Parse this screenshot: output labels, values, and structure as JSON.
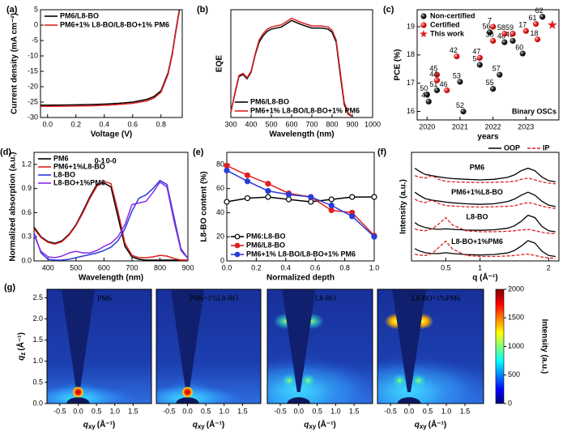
{
  "chart_data": [
    {
      "type": "line",
      "panel_label": "(a)",
      "x_label": "Voltage (V)",
      "y_label": "Current density (mA cm⁻²)",
      "xlim": [
        -0.05,
        0.95
      ],
      "xticks": [
        {
          "value": 0,
          "label": "0.0"
        },
        0.2,
        0.4,
        0.6,
        0.8
      ],
      "ylim": [
        -30,
        5
      ],
      "yticks": [
        -30,
        -25,
        -20,
        -15,
        -10,
        -5,
        0,
        5
      ],
      "legend": "upper left",
      "x": [
        -0.05,
        0,
        0.1,
        0.2,
        0.3,
        0.4,
        0.5,
        0.6,
        0.7,
        0.75,
        0.8,
        0.85,
        0.88,
        0.9,
        0.92,
        0.93
      ],
      "series": [
        {
          "name": "PM6/L8-BO",
          "color": "#000000",
          "values": [
            -26.0,
            -26.0,
            -25.95,
            -25.9,
            -25.8,
            -25.65,
            -25.4,
            -25.0,
            -24.1,
            -23.2,
            -21.3,
            -15.5,
            -9.0,
            -3.0,
            2.5,
            5.0
          ]
        },
        {
          "name": "PM6+1% L8-BO/L8-BO+1% PM6",
          "color": "#e02020",
          "values": [
            -26.4,
            -26.4,
            -26.35,
            -26.3,
            -26.2,
            -26.05,
            -25.8,
            -25.4,
            -24.6,
            -23.7,
            -21.8,
            -16.0,
            -9.5,
            -3.5,
            2.0,
            4.5
          ]
        }
      ]
    },
    {
      "type": "line",
      "panel_label": "(b)",
      "x_label": "Wavelength (nm)",
      "y_label": "EQE",
      "xlim": [
        300,
        1000
      ],
      "xticks": [
        300,
        400,
        500,
        600,
        700,
        800,
        900,
        1000
      ],
      "ylim": [
        0,
        1
      ],
      "legend": "lower left",
      "x": [
        300,
        320,
        340,
        360,
        380,
        400,
        420,
        440,
        460,
        480,
        500,
        550,
        600,
        650,
        700,
        750,
        780,
        800,
        820,
        840,
        860,
        880,
        900
      ],
      "series": [
        {
          "name": "PM6/L8-BO",
          "color": "#000000",
          "values": [
            0.05,
            0.22,
            0.38,
            0.4,
            0.36,
            0.42,
            0.58,
            0.7,
            0.76,
            0.8,
            0.82,
            0.84,
            0.9,
            0.86,
            0.83,
            0.83,
            0.82,
            0.79,
            0.7,
            0.4,
            0.12,
            0.03,
            0.01
          ]
        },
        {
          "name": "PM6+1% L8-BO/L8-BO+1% PM6",
          "color": "#e02020",
          "values": [
            0.05,
            0.23,
            0.39,
            0.41,
            0.37,
            0.43,
            0.59,
            0.72,
            0.78,
            0.82,
            0.84,
            0.86,
            0.92,
            0.88,
            0.85,
            0.85,
            0.84,
            0.81,
            0.72,
            0.43,
            0.14,
            0.04,
            0.01
          ]
        }
      ]
    },
    {
      "type": "scatter",
      "panel_label": "(c)",
      "x_label": "years",
      "y_label": "PCE (%)",
      "annotation": "Binary OSCs",
      "xlim": [
        2019.7,
        2024.0
      ],
      "xticks": [
        2020,
        2021,
        2022,
        2023
      ],
      "ylim": [
        15.7,
        19.6
      ],
      "yticks": [
        16,
        17,
        18,
        19
      ],
      "legend": "upper left",
      "series": [
        {
          "name": "Non-certified",
          "color": "#111111",
          "marker": "circle",
          "x": [
            2020.0,
            2020.05,
            2020.3,
            2021.0,
            2021.1,
            2021.6,
            2021.9,
            2022.0,
            2022.2,
            2022.35,
            2022.6,
            2022.9,
            2023.5
          ],
          "values": [
            16.6,
            16.35,
            16.75,
            17.05,
            16.0,
            17.65,
            18.8,
            16.8,
            17.3,
            18.45,
            18.5,
            18.05,
            19.35
          ],
          "point_labels": [
            "50",
            "43",
            "51",
            "53",
            "52",
            "54",
            "56",
            "55",
            "57",
            "48",
            "49",
            "60",
            "62"
          ]
        },
        {
          "name": "Certified",
          "color": "#e02020",
          "marker": "circle",
          "x": [
            2020.3,
            2020.3,
            2020.6,
            2020.9,
            2021.6,
            2022.0,
            2022.0,
            2022.35,
            2022.6,
            2023.0,
            2023.35,
            2023.3
          ],
          "values": [
            17.3,
            17.1,
            16.75,
            17.95,
            17.9,
            19.0,
            18.5,
            18.75,
            18.75,
            18.85,
            18.55,
            19.1
          ],
          "point_labels": [
            "45",
            "44",
            "46",
            "42",
            "47",
            "7",
            "30",
            "58",
            "59",
            "17",
            "18",
            "61"
          ]
        },
        {
          "name": "This work",
          "color": "#e02020",
          "marker": "star",
          "x": [
            2023.8
          ],
          "values": [
            19.06
          ]
        }
      ]
    },
    {
      "type": "line",
      "panel_label": "(d)",
      "x_label": "Wavelength (nm)",
      "y_label": "Normalized absorption (a.u.)",
      "annotations": [
        "0-1",
        "0-0"
      ],
      "xlim": [
        350,
        900
      ],
      "xticks": [
        400,
        500,
        600,
        700,
        800,
        900
      ],
      "ylim": [
        0,
        1.35
      ],
      "yticks": [
        {
          "value": 0,
          "label": "0.0"
        },
        0.3,
        0.6,
        0.9,
        1.2
      ],
      "legend": "upper left",
      "x": [
        350,
        375,
        400,
        425,
        450,
        475,
        500,
        525,
        550,
        575,
        600,
        625,
        650,
        675,
        700,
        725,
        750,
        775,
        800,
        825,
        850,
        875,
        900
      ],
      "series": [
        {
          "name": "PM6",
          "color": "#000000",
          "values": [
            0.42,
            0.3,
            0.24,
            0.22,
            0.25,
            0.33,
            0.45,
            0.62,
            0.8,
            0.95,
            0.97,
            0.92,
            0.55,
            0.18,
            0.05,
            0.02,
            0.01,
            0.01,
            0.01,
            0.01,
            0.01,
            0.01,
            0.01
          ]
        },
        {
          "name": "PM6+1%L8-BO",
          "color": "#e02020",
          "values": [
            0.4,
            0.29,
            0.23,
            0.21,
            0.24,
            0.32,
            0.44,
            0.6,
            0.78,
            0.93,
            0.99,
            0.96,
            0.62,
            0.22,
            0.07,
            0.04,
            0.04,
            0.05,
            0.07,
            0.06,
            0.03,
            0.01,
            0.01
          ]
        },
        {
          "name": "L8-BO",
          "color": "#2a3bd8",
          "values": [
            0.35,
            0.1,
            0.02,
            0.01,
            0.01,
            0.02,
            0.04,
            0.06,
            0.08,
            0.1,
            0.13,
            0.17,
            0.25,
            0.4,
            0.62,
            0.78,
            0.82,
            0.9,
            1.0,
            0.95,
            0.55,
            0.15,
            0.03
          ]
        },
        {
          "name": "L8-BO+1%PM6",
          "color": "#8a2be2",
          "values": [
            0.32,
            0.12,
            0.05,
            0.04,
            0.06,
            0.1,
            0.12,
            0.1,
            0.1,
            0.13,
            0.18,
            0.22,
            0.3,
            0.45,
            0.7,
            0.72,
            0.74,
            0.85,
            0.98,
            0.92,
            0.5,
            0.13,
            0.03
          ]
        }
      ]
    },
    {
      "type": "line",
      "panel_label": "(e)",
      "x_label": "Normalized depth",
      "y_label": "L8-BO content (%)",
      "xlim": [
        0,
        1
      ],
      "xticks": [
        {
          "value": 0,
          "label": "0.0"
        },
        0.2,
        0.4,
        0.6,
        0.8,
        {
          "value": 1,
          "label": "1.0"
        }
      ],
      "ylim": [
        0,
        90
      ],
      "yticks": [
        0,
        20,
        40,
        60,
        80
      ],
      "legend": "lower left",
      "markers": true,
      "x": [
        0,
        0.14,
        0.28,
        0.42,
        0.57,
        0.71,
        0.85,
        1.0
      ],
      "series": [
        {
          "name": "PM6:L8-BO",
          "color": "#000000",
          "values": [
            49,
            52,
            53,
            51,
            49,
            51,
            53,
            53
          ]
        },
        {
          "name": "PM6/L8-BO",
          "color": "#e02020",
          "values": [
            79,
            71,
            64,
            56,
            53,
            42,
            40,
            21
          ]
        },
        {
          "name": "PM6+1% L8-BO/L8-BO+1% PM6",
          "color": "#2a3bd8",
          "values": [
            75,
            66,
            58,
            55,
            53,
            46,
            37,
            20
          ]
        }
      ]
    },
    {
      "type": "stacked_line",
      "panel_label": "(f)",
      "x_label": "q (Å⁻¹)",
      "y_label": "Intensity (a.u.)",
      "xlim": [
        0,
        2.15
      ],
      "xticks": [
        0.5,
        1,
        2
      ],
      "ylim": [
        0,
        1
      ],
      "x": [
        0.05,
        0.1,
        0.2,
        0.3,
        0.4,
        0.5,
        0.6,
        0.8,
        1.0,
        1.2,
        1.4,
        1.5,
        1.6,
        1.7,
        1.8,
        1.9,
        2.0,
        2.1
      ],
      "series": [
        {
          "name": "OOP",
          "color": "#000000",
          "dash": false
        },
        {
          "name": "IP",
          "color": "#e02020",
          "dash": true
        }
      ],
      "samples": [
        {
          "name": "PM6",
          "curves": [
            [
              0.75,
              0.65,
              0.5,
              0.45,
              0.4,
              0.36,
              0.33,
              0.3,
              0.28,
              0.3,
              0.38,
              0.48,
              0.65,
              0.75,
              0.65,
              0.4,
              0.25,
              0.2
            ],
            [
              0.45,
              0.4,
              0.35,
              0.45,
              0.3,
              0.22,
              0.2,
              0.18,
              0.17,
              0.18,
              0.2,
              0.22,
              0.3,
              0.35,
              0.28,
              0.2,
              0.15,
              0.12
            ]
          ]
        },
        {
          "name": "PM6+1%L8-BO",
          "curves": [
            [
              0.78,
              0.68,
              0.52,
              0.46,
              0.42,
              0.38,
              0.35,
              0.31,
              0.29,
              0.31,
              0.4,
              0.5,
              0.66,
              0.78,
              0.66,
              0.42,
              0.26,
              0.2
            ],
            [
              0.5,
              0.42,
              0.36,
              0.46,
              0.32,
              0.24,
              0.22,
              0.19,
              0.18,
              0.19,
              0.21,
              0.23,
              0.3,
              0.36,
              0.3,
              0.22,
              0.16,
              0.12
            ]
          ]
        },
        {
          "name": "L8-BO",
          "curves": [
            [
              0.55,
              0.45,
              0.35,
              0.3,
              0.28,
              0.3,
              0.28,
              0.25,
              0.24,
              0.26,
              0.32,
              0.42,
              0.6,
              0.85,
              0.75,
              0.4,
              0.22,
              0.18
            ],
            [
              0.3,
              0.25,
              0.22,
              0.3,
              0.5,
              0.75,
              0.45,
              0.22,
              0.18,
              0.18,
              0.2,
              0.22,
              0.25,
              0.28,
              0.22,
              0.16,
              0.12,
              0.1
            ]
          ]
        },
        {
          "name": "L8-BO+1%PM6",
          "curves": [
            [
              0.5,
              0.42,
              0.33,
              0.3,
              0.3,
              0.33,
              0.3,
              0.26,
              0.24,
              0.26,
              0.32,
              0.42,
              0.6,
              0.82,
              0.72,
              0.4,
              0.22,
              0.18
            ],
            [
              0.28,
              0.24,
              0.22,
              0.3,
              0.55,
              0.8,
              0.48,
              0.22,
              0.18,
              0.18,
              0.2,
              0.22,
              0.25,
              0.28,
              0.22,
              0.16,
              0.12,
              0.1
            ]
          ]
        }
      ]
    },
    {
      "type": "heatmap",
      "panel_label": "(g)",
      "x_label": {
        "symbol": "q",
        "sub": "xy",
        "unit": "(Å⁻¹)"
      },
      "y_label": {
        "symbol": "q",
        "sub": "z",
        "unit": "(Å⁻¹)"
      },
      "xlim": [
        -0.85,
        2.0
      ],
      "xticks": [
        -0.5,
        {
          "value": 0,
          "label": "0.0"
        },
        0.5,
        {
          "value": 1,
          "label": "1.0"
        },
        1.5
      ],
      "ylim": [
        0,
        2.7
      ],
      "yticks": [
        {
          "value": 0,
          "label": "0.0"
        },
        0.5,
        {
          "value": 1,
          "label": "1.0"
        },
        1.5,
        {
          "value": 2,
          "label": "2.0"
        },
        2.5
      ],
      "panels": [
        "PM6",
        "PM6+1%L8-BO",
        "L8-BO",
        "L8-BO+1%PM6"
      ],
      "colormap": "jet",
      "clim": [
        0,
        2000
      ],
      "cticks": [
        0,
        500,
        1000,
        1500,
        2000
      ],
      "colorbar_label": "Intensity (a.u.)"
    }
  ]
}
